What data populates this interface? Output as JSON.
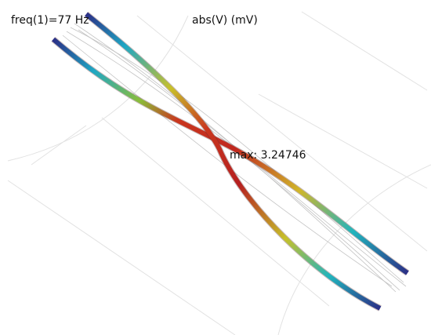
{
  "header": {
    "frequency": "freq(1)=77 Hz",
    "quantity": "abs(V) (mV)"
  },
  "annotation": {
    "max": "max: 3.24746"
  }
}
